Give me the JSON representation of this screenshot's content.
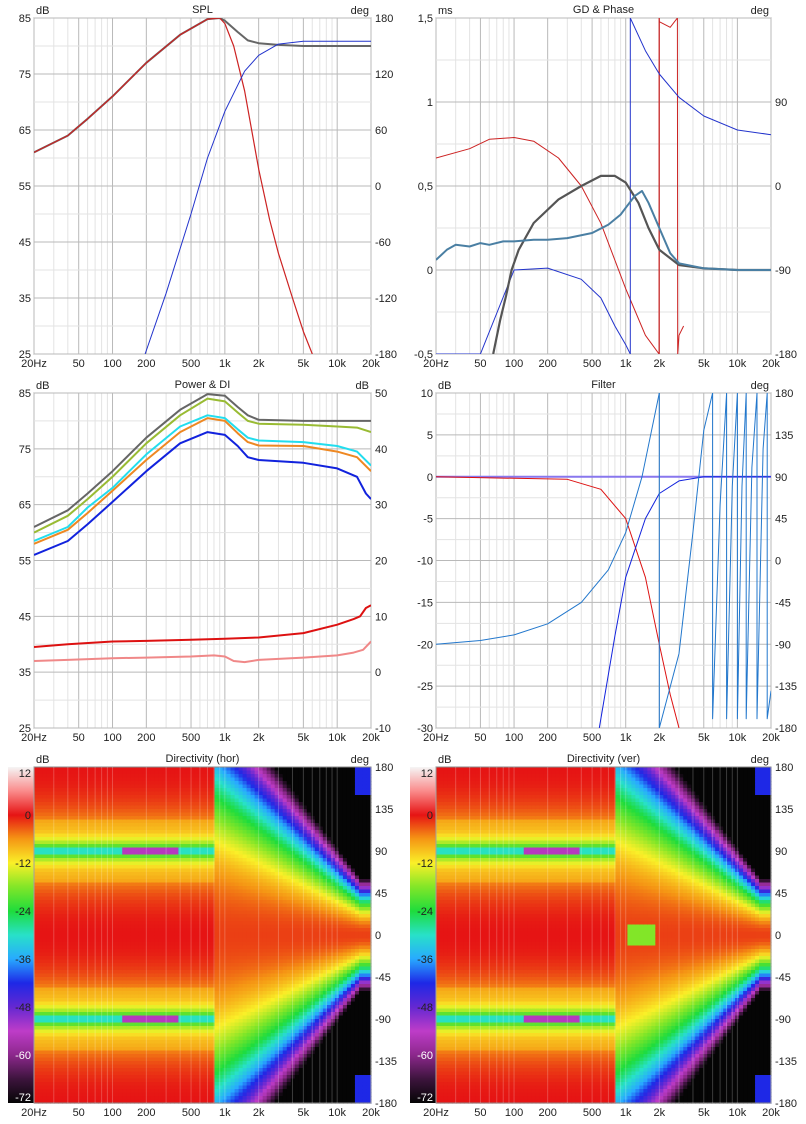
{
  "chart_data": [
    {
      "type": "line",
      "title": "SPL",
      "left_unit": "dB",
      "right_unit": "deg",
      "xlim": [
        20,
        20000
      ],
      "xscale": "log",
      "x_tick_labels": [
        "20Hz",
        "50",
        "100",
        "200",
        "500",
        "1k",
        "2k",
        "5k",
        "10k",
        "20k"
      ],
      "ylim_left": [
        25,
        85
      ],
      "y_tick_labels_left": [
        "85",
        "75",
        "65",
        "55",
        "45",
        "35",
        "25"
      ],
      "ylim_right": [
        -180,
        180
      ],
      "y_tick_labels_right": [
        "180",
        "120",
        "60",
        "0",
        "-60",
        "-120",
        "-180"
      ],
      "grid": true,
      "series": [
        {
          "color": "#666666",
          "axis": "left",
          "width": 2,
          "x": [
            20,
            40,
            60,
            100,
            200,
            400,
            700,
            900,
            1000,
            1300,
            1600,
            2000,
            3000,
            5000,
            10000,
            20000
          ],
          "y": [
            61,
            64,
            67,
            71,
            77,
            82,
            84.8,
            85,
            84.5,
            82.5,
            81,
            80.5,
            80.2,
            80,
            80,
            80
          ]
        },
        {
          "color": "#cc2222",
          "axis": "left",
          "width": 1.2,
          "x": [
            20,
            40,
            60,
            100,
            200,
            400,
            700,
            900,
            1000,
            1200,
            1500,
            2000,
            2500,
            3000,
            4000,
            5000,
            6000
          ],
          "y": [
            61,
            64,
            67,
            71,
            77,
            82,
            84.8,
            85,
            84,
            80,
            72,
            58,
            49,
            43,
            35,
            29,
            25
          ]
        },
        {
          "color": "#2233cc",
          "axis": "right",
          "width": 1,
          "x": [
            195,
            300,
            500,
            700,
            1000,
            1500,
            2000,
            3000,
            5000,
            10000,
            20000
          ],
          "y": [
            -180,
            -115,
            -30,
            30,
            80,
            123,
            140,
            152,
            155,
            155,
            155
          ]
        }
      ]
    },
    {
      "type": "line",
      "title": "GD & Phase",
      "left_unit": "ms",
      "right_unit": "deg",
      "xlim": [
        20,
        20000
      ],
      "xscale": "log",
      "x_tick_labels": [
        "20Hz",
        "50",
        "100",
        "200",
        "500",
        "1k",
        "2k",
        "5k",
        "10k",
        "20k"
      ],
      "ylim_left": [
        -0.5,
        1.5
      ],
      "y_tick_labels_left": [
        "1,5",
        "1",
        "0,5",
        "0",
        "-0,5"
      ],
      "ylim_right": [
        -180,
        180
      ],
      "y_tick_labels_right": [
        "90",
        "0",
        "-90",
        "-180"
      ],
      "grid": true,
      "series": [
        {
          "color": "#cc2222",
          "axis": "right",
          "width": 1,
          "x": [
            20,
            40,
            60,
            100,
            150,
            250,
            400,
            600,
            1000,
            1500,
            1990,
            1995,
            2000,
            2500,
            2900,
            2920,
            3000,
            3300
          ],
          "y": [
            30,
            40,
            50,
            52,
            48,
            30,
            0,
            -40,
            -110,
            -160,
            -180,
            180,
            176,
            170,
            180,
            -180,
            -160,
            -150
          ]
        },
        {
          "color": "#cc2222",
          "axis": "right",
          "width": 1,
          "x": [
            1995,
            1995
          ],
          "y": [
            -180,
            180
          ]
        },
        {
          "color": "#2233cc",
          "axis": "right",
          "width": 1,
          "x": [
            20,
            50,
            100,
            200,
            400,
            600,
            800,
            1000,
            1100
          ],
          "y": [
            -180,
            -180,
            -90,
            -88,
            -100,
            -120,
            -150,
            -170,
            -180
          ]
        },
        {
          "color": "#2233cc",
          "axis": "right",
          "width": 1,
          "x": [
            1100,
            1100,
            1500,
            2000,
            3000,
            5000,
            10000,
            20000
          ],
          "y": [
            -180,
            180,
            145,
            120,
            95,
            75,
            60,
            55
          ]
        },
        {
          "color": "#555555",
          "axis": "left",
          "width": 2.2,
          "x": [
            65,
            75,
            85,
            95,
            110,
            150,
            250,
            400,
            600,
            800,
            1000,
            1300,
            1600,
            2000,
            3000,
            5000,
            10000,
            20000
          ],
          "y": [
            -0.5,
            -0.3,
            -0.15,
            0,
            0.12,
            0.28,
            0.42,
            0.5,
            0.56,
            0.56,
            0.52,
            0.4,
            0.25,
            0.12,
            0.03,
            0.01,
            0,
            0
          ]
        },
        {
          "color": "#4a7fa3",
          "axis": "left",
          "width": 2,
          "x": [
            20,
            25,
            30,
            40,
            50,
            60,
            80,
            100,
            150,
            200,
            300,
            500,
            700,
            900,
            1000,
            1200,
            1400,
            1600,
            2000,
            2500,
            3000,
            5000,
            10000,
            20000
          ],
          "y": [
            0.06,
            0.12,
            0.15,
            0.14,
            0.16,
            0.15,
            0.17,
            0.17,
            0.18,
            0.18,
            0.19,
            0.22,
            0.27,
            0.33,
            0.37,
            0.44,
            0.47,
            0.4,
            0.25,
            0.1,
            0.04,
            0.01,
            0,
            0
          ]
        }
      ]
    },
    {
      "type": "line",
      "title": "Power & DI",
      "left_unit": "dB",
      "right_unit": "dB",
      "xlim": [
        20,
        20000
      ],
      "xscale": "log",
      "x_tick_labels": [
        "20Hz",
        "50",
        "100",
        "200",
        "500",
        "1k",
        "2k",
        "5k",
        "10k",
        "20k"
      ],
      "ylim_left": [
        25,
        85
      ],
      "y_tick_labels_left": [
        "85",
        "75",
        "65",
        "55",
        "45",
        "35",
        "25"
      ],
      "ylim_right": [
        -10,
        50
      ],
      "y_tick_labels_right": [
        "50",
        "40",
        "30",
        "20",
        "10",
        "0",
        "-10"
      ],
      "grid": true,
      "series": [
        {
          "color": "#666666",
          "axis": "left",
          "width": 2,
          "x": [
            20,
            40,
            60,
            100,
            200,
            400,
            700,
            1000,
            1300,
            1600,
            2000,
            5000,
            10000,
            15000,
            20000
          ],
          "y": [
            61,
            64,
            67,
            71,
            77,
            82,
            84.8,
            84.5,
            82.5,
            81,
            80.2,
            80,
            80,
            80,
            80
          ]
        },
        {
          "color": "#99bb33",
          "axis": "left",
          "width": 2,
          "x": [
            20,
            40,
            60,
            100,
            200,
            400,
            700,
            1000,
            1300,
            1600,
            2000,
            5000,
            10000,
            15000,
            20000
          ],
          "y": [
            60,
            63,
            66,
            70,
            76,
            81,
            84,
            83.5,
            81.5,
            80,
            79.5,
            79.3,
            79,
            78.8,
            78
          ]
        },
        {
          "color": "#22ddee",
          "axis": "left",
          "width": 2,
          "x": [
            20,
            40,
            60,
            100,
            200,
            400,
            700,
            1000,
            1300,
            1600,
            2000,
            5000,
            10000,
            15000,
            20000
          ],
          "y": [
            58.5,
            61,
            64.5,
            68,
            74,
            79,
            81,
            80.5,
            78.5,
            77,
            76.5,
            76.2,
            75.5,
            74.5,
            72
          ]
        },
        {
          "color": "#ee8822",
          "axis": "left",
          "width": 2,
          "x": [
            20,
            40,
            60,
            100,
            200,
            400,
            700,
            1000,
            1300,
            1600,
            2000,
            5000,
            10000,
            15000,
            20000
          ],
          "y": [
            58,
            60.5,
            63.5,
            67.5,
            73,
            78,
            80.5,
            80,
            77.8,
            76.2,
            75.6,
            75.5,
            74.5,
            73.5,
            71
          ]
        },
        {
          "color": "#1122dd",
          "axis": "left",
          "width": 2,
          "x": [
            20,
            40,
            60,
            100,
            200,
            400,
            700,
            1000,
            1300,
            1600,
            2000,
            5000,
            10000,
            15000,
            18000,
            20000
          ],
          "y": [
            56,
            58.5,
            61.5,
            65.5,
            71,
            76,
            78,
            77.5,
            75.5,
            73.5,
            73,
            72.5,
            71.5,
            70,
            67,
            66
          ]
        },
        {
          "color": "#dd1111",
          "axis": "right",
          "width": 2,
          "x": [
            20,
            40,
            100,
            200,
            500,
            1000,
            2000,
            5000,
            10000,
            14000,
            16000,
            18000,
            20000
          ],
          "y": [
            4.5,
            5,
            5.5,
            5.6,
            5.8,
            6,
            6.2,
            7,
            8.5,
            9.5,
            10,
            11.5,
            12
          ]
        },
        {
          "color": "#f08888",
          "axis": "right",
          "width": 2,
          "x": [
            20,
            40,
            100,
            200,
            500,
            800,
            1000,
            1200,
            1500,
            2000,
            5000,
            10000,
            14000,
            17000,
            20000
          ],
          "y": [
            2,
            2.2,
            2.5,
            2.6,
            2.8,
            3,
            2.8,
            2,
            1.8,
            2.2,
            2.6,
            3,
            3.5,
            4,
            5.5
          ]
        }
      ]
    },
    {
      "type": "line",
      "title": "Filter",
      "left_unit": "dB",
      "right_unit": "deg",
      "xlim": [
        20,
        20000
      ],
      "xscale": "log",
      "x_tick_labels": [
        "20Hz",
        "50",
        "100",
        "200",
        "500",
        "1k",
        "2k",
        "5k",
        "10k",
        "20k"
      ],
      "ylim_left": [
        -30,
        10
      ],
      "y_tick_labels_left": [
        "10",
        "5",
        "0",
        "-5",
        "-10",
        "-15",
        "-20",
        "-25",
        "-30"
      ],
      "ylim_right": [
        -180,
        180
      ],
      "y_tick_labels_right": [
        "180",
        "135",
        "90",
        "45",
        "0",
        "-45",
        "-90",
        "-135",
        "-180"
      ],
      "grid": true,
      "series": [
        {
          "color": "#8877ee",
          "axis": "left",
          "width": 2,
          "x": [
            20,
            20000
          ],
          "y": [
            0,
            0
          ]
        },
        {
          "color": "#dd1111",
          "axis": "left",
          "width": 1,
          "x": [
            20,
            300,
            600,
            1000,
            1500,
            2000,
            2500,
            3000
          ],
          "y": [
            0,
            -0.3,
            -1.5,
            -5,
            -12,
            -20,
            -26,
            -30
          ]
        },
        {
          "color": "#1122dd",
          "axis": "left",
          "width": 1,
          "x": [
            580,
            800,
            1000,
            1500,
            2000,
            3000,
            5000,
            20000
          ],
          "y": [
            -30,
            -19,
            -12,
            -5,
            -2,
            -0.5,
            0,
            0
          ]
        },
        {
          "color": "#2277cc",
          "axis": "right",
          "width": 1,
          "x": [
            20,
            50,
            100,
            200,
            400,
            700,
            1000,
            1400,
            2000
          ],
          "y": [
            -90,
            -86,
            -80,
            -68,
            -45,
            -10,
            30,
            90,
            180
          ]
        },
        {
          "color": "#2277cc",
          "axis": "right",
          "width": 1,
          "x": [
            2000,
            2000,
            3000,
            4000,
            5000,
            6000,
            6000,
            7000,
            8000,
            8000,
            9000,
            10000,
            10000,
            11000,
            12000,
            12000,
            13500,
            15000,
            15000,
            17000,
            18500,
            18500,
            20000
          ],
          "y": [
            180,
            -180,
            -100,
            30,
            140,
            180,
            -170,
            60,
            180,
            -170,
            80,
            180,
            -170,
            80,
            180,
            -170,
            100,
            180,
            -170,
            120,
            180,
            -170,
            -140
          ]
        }
      ]
    },
    {
      "type": "heatmap",
      "title": "Directivity (hor)",
      "left_unit": "dB",
      "right_unit": "deg",
      "xlim": [
        20,
        20000
      ],
      "xscale": "log",
      "x_tick_labels": [
        "20Hz",
        "50",
        "100",
        "200",
        "500",
        "1k",
        "2k",
        "5k",
        "10k",
        "20k"
      ],
      "ylim_right": [
        -180,
        180
      ],
      "y_tick_labels_right": [
        "180",
        "135",
        "90",
        "45",
        "0",
        "-45",
        "-90",
        "-135",
        "-180"
      ],
      "colorbar_range": [
        -72,
        12
      ],
      "colorbar_tick_labels": [
        "12",
        "0",
        "-12",
        "-24",
        "-36",
        "-48",
        "-60",
        "-72"
      ],
      "null_angles": [
        90,
        -90
      ],
      "high_freq_beaming_start": 800
    },
    {
      "type": "heatmap",
      "title": "Directivity (ver)",
      "left_unit": "dB",
      "right_unit": "deg",
      "xlim": [
        20,
        20000
      ],
      "xscale": "log",
      "x_tick_labels": [
        "20Hz",
        "50",
        "100",
        "200",
        "500",
        "1k",
        "2k",
        "5k",
        "10k",
        "20k"
      ],
      "ylim_right": [
        -180,
        180
      ],
      "y_tick_labels_right": [
        "180",
        "135",
        "90",
        "45",
        "0",
        "-45",
        "-90",
        "-135",
        "-180"
      ],
      "colorbar_range": [
        -72,
        12
      ],
      "colorbar_tick_labels": [
        "12",
        "0",
        "-12",
        "-24",
        "-36",
        "-48",
        "-60",
        "-72"
      ],
      "null_angles": [
        90,
        -90
      ],
      "high_freq_beaming_start": 800
    }
  ]
}
